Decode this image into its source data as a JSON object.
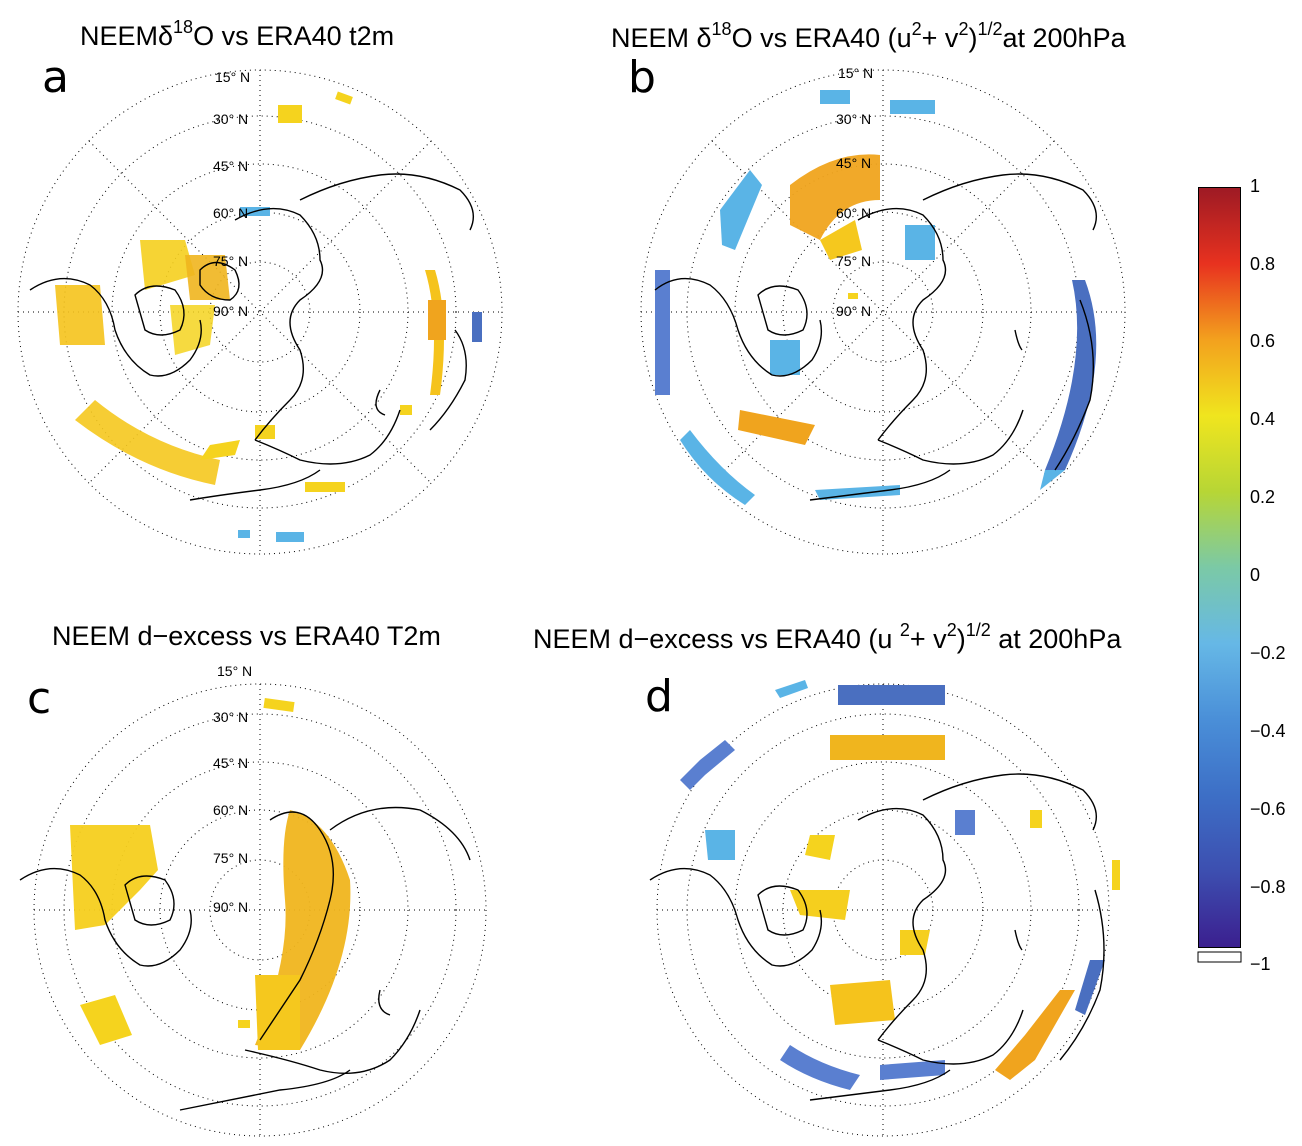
{
  "panels": [
    {
      "letter": "a",
      "title_parts": [
        "NEEM",
        "δ",
        "18",
        "O vs ERA40 t2m"
      ],
      "lat_labels": [
        "15° N",
        "30° N",
        "45° N",
        "60° N",
        "75° N",
        "90° N"
      ]
    },
    {
      "letter": "b",
      "title_parts": [
        "NEEM ",
        "δ",
        "18",
        "O vs ERA40 (u",
        "2",
        "+ v",
        "2",
        ")",
        "1/2",
        "at 200hPa"
      ],
      "lat_labels": [
        "15° N",
        "30° N",
        "45° N",
        "60° N",
        "75° N",
        "90° N"
      ]
    },
    {
      "letter": "c",
      "title_text": "NEEM d−excess vs ERA40 T2m",
      "lat_labels": [
        "15° N",
        "30° N",
        "45° N",
        "60° N",
        "75° N",
        "90° N"
      ]
    },
    {
      "letter": "d",
      "title_parts": [
        "NEEM d−excess vs ERA40 (u ",
        "2",
        "+ v",
        "2",
        ")",
        "1/2",
        " at 200hPa"
      ]
    }
  ],
  "colorbar": {
    "ticks": [
      "1",
      "0.8",
      "0.6",
      "0.4",
      "0.2",
      "0",
      "−0.2",
      "−0.4",
      "−0.6",
      "−0.8",
      "−1"
    ],
    "range": [
      -1,
      1
    ],
    "colors": [
      "#3b1f8f",
      "#3d5fbf",
      "#5aa9e0",
      "#86cfe0",
      "#7bc98a",
      "#b8d934",
      "#eaec1e",
      "#f5c31c",
      "#f08a1e",
      "#e53a1e",
      "#9e1a24"
    ]
  },
  "map_colors": {
    "yellow": "#f5d31e",
    "orange": "#f0a41e",
    "lightblue": "#5ab4e6",
    "blue": "#4a6fc0"
  }
}
